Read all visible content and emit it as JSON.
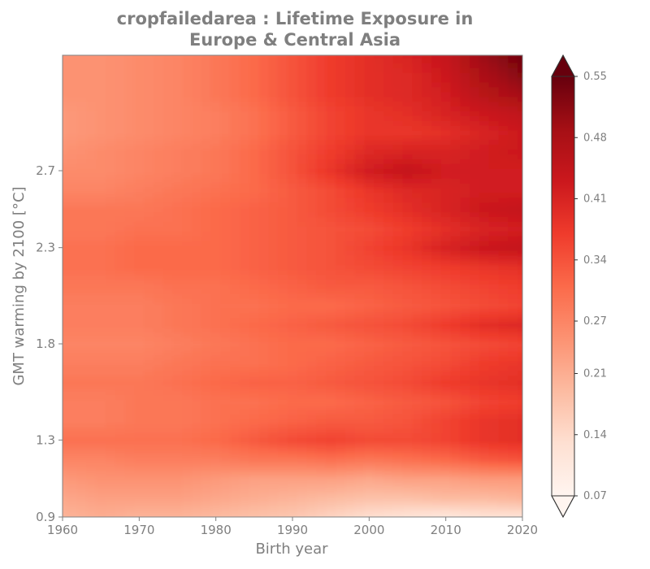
{
  "chart_data": {
    "type": "heatmap",
    "title": "cropfailedarea : Lifetime Exposure in\nEurope & Central Asia",
    "xlabel": "Birth year",
    "ylabel": "GMT warming by 2100 [°C]",
    "x_ticks": [
      "1960",
      "1970",
      "1980",
      "1990",
      "2000",
      "2010",
      "2020"
    ],
    "y_ticks": [
      "0.9",
      "1.3",
      "1.8",
      "2.3",
      "2.7"
    ],
    "xlim": [
      1960,
      2020
    ],
    "ylim": [
      0.9,
      3.3
    ],
    "colorbar": {
      "ticks": [
        "0.07",
        "0.14",
        "0.21",
        "0.27",
        "0.34",
        "0.41",
        "0.48",
        "0.55"
      ],
      "range": [
        0.07,
        0.55
      ],
      "extend": "both",
      "colormap": "Reds"
    },
    "x": [
      1960,
      1965,
      1970,
      1975,
      1980,
      1985,
      1990,
      1995,
      2000,
      2005,
      2010,
      2015,
      2020
    ],
    "y": [
      0.9,
      1.0,
      1.1,
      1.2,
      1.3,
      1.4,
      1.5,
      1.6,
      1.7,
      1.8,
      1.9,
      2.0,
      2.1,
      2.2,
      2.3,
      2.4,
      2.5,
      2.6,
      2.7,
      2.8,
      2.9,
      3.0,
      3.1,
      3.2,
      3.3
    ],
    "values": [
      [
        0.2,
        0.21,
        0.2,
        0.2,
        0.19,
        0.18,
        0.17,
        0.15,
        0.13,
        0.12,
        0.11,
        0.12,
        0.12
      ],
      [
        0.22,
        0.23,
        0.23,
        0.23,
        0.22,
        0.21,
        0.2,
        0.19,
        0.18,
        0.18,
        0.19,
        0.19,
        0.2
      ],
      [
        0.24,
        0.25,
        0.25,
        0.25,
        0.24,
        0.23,
        0.23,
        0.23,
        0.22,
        0.23,
        0.23,
        0.24,
        0.24
      ],
      [
        0.27,
        0.27,
        0.28,
        0.28,
        0.28,
        0.29,
        0.29,
        0.3,
        0.29,
        0.3,
        0.31,
        0.33,
        0.34
      ],
      [
        0.3,
        0.3,
        0.3,
        0.3,
        0.31,
        0.33,
        0.35,
        0.36,
        0.35,
        0.35,
        0.36,
        0.38,
        0.39
      ],
      [
        0.28,
        0.28,
        0.29,
        0.29,
        0.3,
        0.31,
        0.32,
        0.33,
        0.33,
        0.34,
        0.36,
        0.38,
        0.39
      ],
      [
        0.28,
        0.28,
        0.29,
        0.29,
        0.3,
        0.3,
        0.31,
        0.31,
        0.32,
        0.33,
        0.34,
        0.36,
        0.37
      ],
      [
        0.29,
        0.29,
        0.29,
        0.3,
        0.31,
        0.32,
        0.32,
        0.33,
        0.34,
        0.35,
        0.37,
        0.38,
        0.39
      ],
      [
        0.28,
        0.28,
        0.28,
        0.29,
        0.3,
        0.3,
        0.31,
        0.32,
        0.33,
        0.34,
        0.35,
        0.37,
        0.38
      ],
      [
        0.27,
        0.27,
        0.27,
        0.28,
        0.29,
        0.3,
        0.31,
        0.31,
        0.32,
        0.33,
        0.34,
        0.35,
        0.36
      ],
      [
        0.28,
        0.28,
        0.28,
        0.29,
        0.3,
        0.31,
        0.32,
        0.33,
        0.34,
        0.35,
        0.37,
        0.39,
        0.4
      ],
      [
        0.28,
        0.28,
        0.28,
        0.29,
        0.3,
        0.3,
        0.31,
        0.31,
        0.32,
        0.33,
        0.34,
        0.35,
        0.36
      ],
      [
        0.29,
        0.29,
        0.29,
        0.3,
        0.3,
        0.31,
        0.32,
        0.33,
        0.33,
        0.34,
        0.35,
        0.36,
        0.37
      ],
      [
        0.3,
        0.3,
        0.31,
        0.31,
        0.31,
        0.32,
        0.33,
        0.34,
        0.35,
        0.36,
        0.37,
        0.38,
        0.39
      ],
      [
        0.3,
        0.3,
        0.31,
        0.31,
        0.31,
        0.32,
        0.33,
        0.34,
        0.36,
        0.38,
        0.41,
        0.43,
        0.44
      ],
      [
        0.29,
        0.29,
        0.3,
        0.3,
        0.31,
        0.32,
        0.33,
        0.34,
        0.35,
        0.37,
        0.39,
        0.41,
        0.42
      ],
      [
        0.29,
        0.29,
        0.29,
        0.3,
        0.31,
        0.32,
        0.33,
        0.35,
        0.37,
        0.39,
        0.41,
        0.43,
        0.44
      ],
      [
        0.27,
        0.27,
        0.28,
        0.29,
        0.3,
        0.31,
        0.33,
        0.35,
        0.38,
        0.4,
        0.41,
        0.42,
        0.42
      ],
      [
        0.26,
        0.26,
        0.27,
        0.28,
        0.29,
        0.31,
        0.34,
        0.38,
        0.42,
        0.44,
        0.42,
        0.42,
        0.42
      ],
      [
        0.25,
        0.26,
        0.27,
        0.28,
        0.29,
        0.31,
        0.34,
        0.37,
        0.4,
        0.41,
        0.41,
        0.42,
        0.43
      ],
      [
        0.24,
        0.25,
        0.26,
        0.27,
        0.28,
        0.3,
        0.33,
        0.36,
        0.38,
        0.38,
        0.39,
        0.41,
        0.43
      ],
      [
        0.24,
        0.25,
        0.26,
        0.27,
        0.28,
        0.3,
        0.33,
        0.36,
        0.38,
        0.39,
        0.41,
        0.43,
        0.45
      ],
      [
        0.25,
        0.25,
        0.26,
        0.27,
        0.29,
        0.31,
        0.34,
        0.37,
        0.39,
        0.4,
        0.42,
        0.46,
        0.49
      ],
      [
        0.25,
        0.25,
        0.26,
        0.27,
        0.29,
        0.31,
        0.34,
        0.37,
        0.39,
        0.4,
        0.43,
        0.48,
        0.52
      ],
      [
        0.25,
        0.25,
        0.26,
        0.27,
        0.29,
        0.31,
        0.34,
        0.37,
        0.39,
        0.41,
        0.44,
        0.5,
        0.54
      ]
    ]
  },
  "colors": {
    "text": "#7f7f7f",
    "axis": "#7f7f7f",
    "colormap_stops": [
      "#fff5f0",
      "#fee0d2",
      "#fcbba1",
      "#fc9272",
      "#fb6a4a",
      "#ef3b2c",
      "#cb181d",
      "#a50f15",
      "#67000d"
    ]
  }
}
